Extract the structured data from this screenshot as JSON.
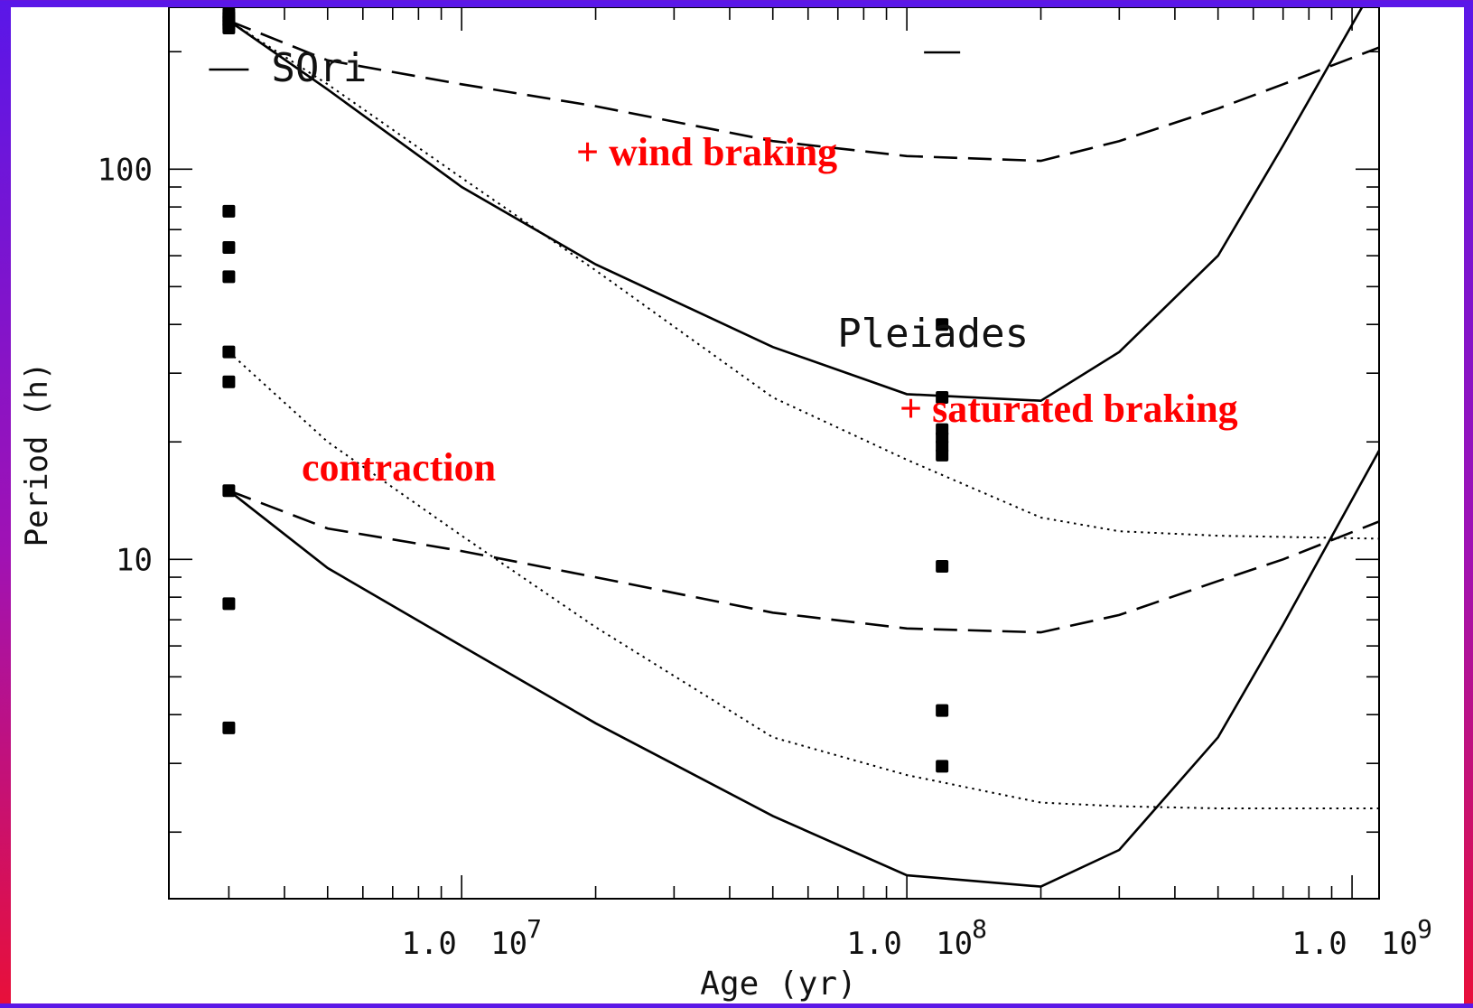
{
  "chart_data": {
    "type": "line",
    "xlabel": "Age (yr)",
    "ylabel": "Period (h)",
    "x_scale": "log",
    "y_scale": "log",
    "xlim": [
      2200000,
      1150000000
    ],
    "ylim": [
      1.35,
      260
    ],
    "x_ticks": [
      {
        "value": 10000000,
        "mantissa": "1.0",
        "base": "10",
        "exp": "7"
      },
      {
        "value": 100000000,
        "mantissa": "1.0",
        "base": "10",
        "exp": "8"
      },
      {
        "value": 1000000000,
        "mantissa": "1.0",
        "base": "10",
        "exp": "9"
      }
    ],
    "y_ticks": [
      {
        "value": 10,
        "label": "10"
      },
      {
        "value": 100,
        "label": "100"
      }
    ],
    "grid": false,
    "legend": "none",
    "cluster_labels": [
      {
        "text": "SOri",
        "x": 3000000,
        "y": 235
      },
      {
        "text": "Pleiades",
        "x": 120000000,
        "y": 55
      }
    ],
    "annotations": [
      {
        "text": "+ wind braking",
        "x": 20000000,
        "y": 155,
        "color": "#ff0000"
      },
      {
        "text": "+ saturated braking",
        "x": 100000000,
        "y": 31,
        "color": "#ff0000"
      },
      {
        "text": "contraction",
        "x": 4800000,
        "y": 22,
        "color": "#ff0000"
      }
    ],
    "cluster_ages": [
      {
        "x": 3000000,
        "y": 235
      },
      {
        "x": 120000000,
        "y": 255
      }
    ],
    "series": [
      {
        "style": "solid",
        "points": [
          [
            3000000,
            240
          ],
          [
            5000000,
            160
          ],
          [
            10000000,
            90
          ],
          [
            20000000,
            57
          ],
          [
            50000000,
            35
          ],
          [
            100000000,
            26.5
          ],
          [
            200000000,
            25.5
          ],
          [
            300000000,
            34
          ],
          [
            500000000,
            60
          ],
          [
            700000000,
            115
          ],
          [
            1150000000,
            310
          ]
        ]
      },
      {
        "style": "dashed",
        "points": [
          [
            3000000,
            240
          ],
          [
            5000000,
            190
          ],
          [
            10000000,
            165
          ],
          [
            20000000,
            145
          ],
          [
            50000000,
            118
          ],
          [
            100000000,
            108
          ],
          [
            200000000,
            105
          ],
          [
            300000000,
            118
          ],
          [
            500000000,
            143
          ],
          [
            700000000,
            165
          ],
          [
            1150000000,
            205
          ]
        ]
      },
      {
        "style": "dotted",
        "points": [
          [
            3000000,
            240
          ],
          [
            5000000,
            165
          ],
          [
            10000000,
            95
          ],
          [
            20000000,
            55
          ],
          [
            50000000,
            26
          ],
          [
            100000000,
            18
          ],
          [
            200000000,
            12.8
          ],
          [
            300000000,
            11.8
          ],
          [
            500000000,
            11.5
          ],
          [
            1150000000,
            11.3
          ]
        ]
      },
      {
        "style": "solid",
        "points": [
          [
            3000000,
            15
          ],
          [
            5000000,
            9.5
          ],
          [
            10000000,
            6
          ],
          [
            20000000,
            3.8
          ],
          [
            50000000,
            2.2
          ],
          [
            100000000,
            1.55
          ],
          [
            200000000,
            1.45
          ],
          [
            300000000,
            1.8
          ],
          [
            500000000,
            3.5
          ],
          [
            700000000,
            6.8
          ],
          [
            1150000000,
            19
          ]
        ]
      },
      {
        "style": "dashed",
        "points": [
          [
            3000000,
            15
          ],
          [
            5000000,
            12
          ],
          [
            10000000,
            10.5
          ],
          [
            20000000,
            9
          ],
          [
            50000000,
            7.3
          ],
          [
            100000000,
            6.65
          ],
          [
            200000000,
            6.5
          ],
          [
            300000000,
            7.2
          ],
          [
            500000000,
            8.8
          ],
          [
            700000000,
            10
          ],
          [
            1150000000,
            12.5
          ]
        ]
      },
      {
        "style": "dotted",
        "points": [
          [
            3000000,
            34
          ],
          [
            5000000,
            20
          ],
          [
            10000000,
            11.5
          ],
          [
            20000000,
            6.7
          ],
          [
            50000000,
            3.5
          ],
          [
            100000000,
            2.8
          ],
          [
            200000000,
            2.38
          ],
          [
            300000000,
            2.33
          ],
          [
            500000000,
            2.3
          ],
          [
            1150000000,
            2.3
          ]
        ]
      }
    ],
    "observations": [
      {
        "cluster": "SOri",
        "x": 3000000,
        "periods": [
          250,
          245,
          240,
          235,
          230,
          78,
          63,
          53,
          34,
          28.5,
          15,
          7.7,
          3.7
        ]
      },
      {
        "cluster": "Pleiades",
        "x": 120000000,
        "periods": [
          40,
          26,
          21.5,
          20.5,
          19.5,
          18.5,
          9.6,
          4.1,
          2.95
        ]
      }
    ]
  }
}
